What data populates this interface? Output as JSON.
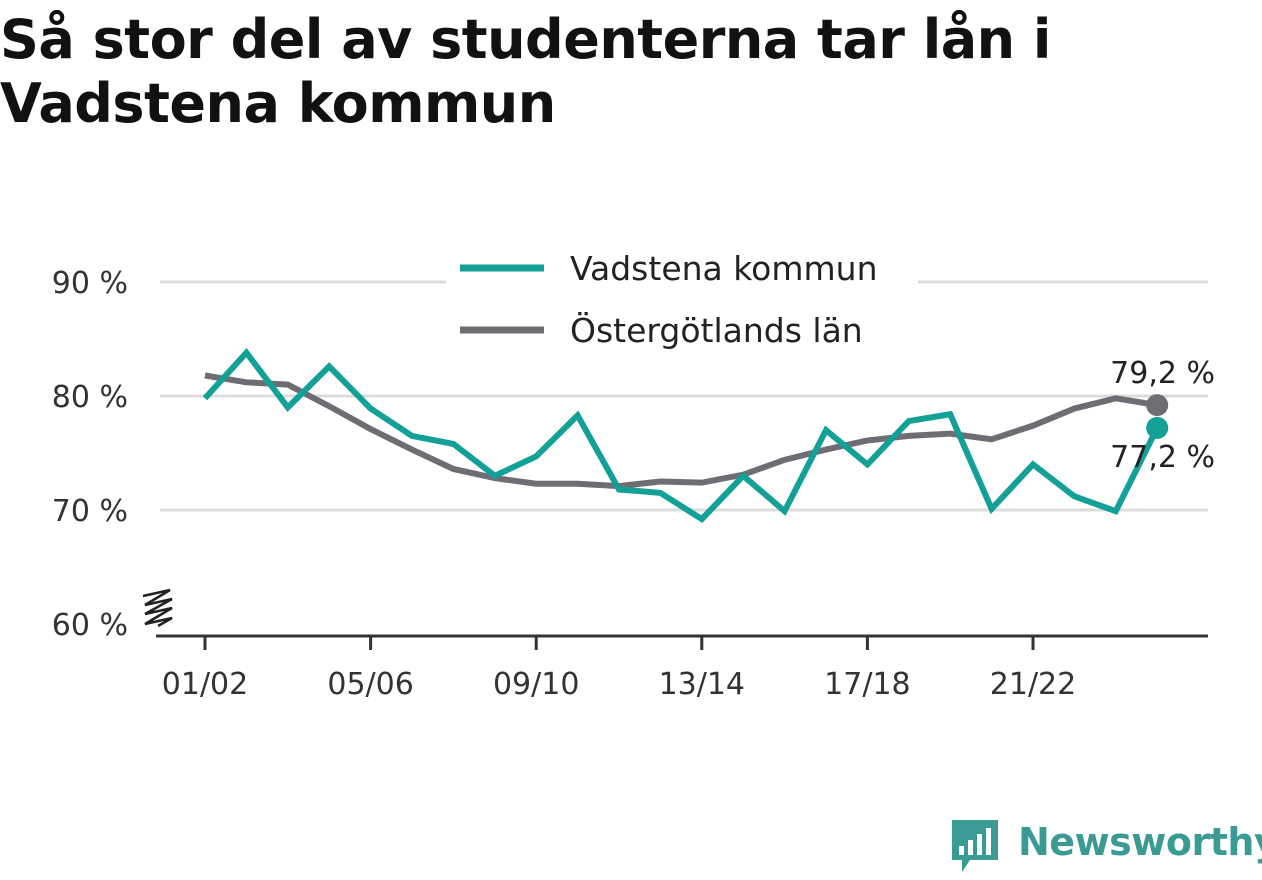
{
  "title": "Så stor del av studenterna tar lån i Vadstena kommun",
  "brand": {
    "name": "Newsworthy",
    "color": "#3a9a94",
    "icon": "bar-chart-speech-bubble-icon"
  },
  "chart_data": {
    "type": "line",
    "title": "Så stor del av studenterna tar lån i Vadstena kommun",
    "xlabel": "",
    "ylabel": "",
    "ylim": [
      60,
      90
    ],
    "yticks": [
      {
        "value": 60,
        "label": "60 %"
      },
      {
        "value": 70,
        "label": "70 %"
      },
      {
        "value": 80,
        "label": "80 %"
      },
      {
        "value": 90,
        "label": "90 %"
      }
    ],
    "y_axis_break": true,
    "grid": true,
    "legend_position": "top",
    "x": [
      "01/02",
      "02/03",
      "03/04",
      "04/05",
      "05/06",
      "06/07",
      "07/08",
      "08/09",
      "09/10",
      "10/11",
      "11/12",
      "12/13",
      "13/14",
      "14/15",
      "15/16",
      "16/17",
      "17/18",
      "18/19",
      "19/20",
      "20/21",
      "21/22",
      "22/23",
      "23/24",
      "24/25"
    ],
    "xticks": [
      "01/02",
      "05/06",
      "09/10",
      "13/14",
      "17/18",
      "21/22"
    ],
    "series": [
      {
        "name": "Vadstena kommun",
        "color": "#12a097",
        "values": [
          79.8,
          83.8,
          79.0,
          82.6,
          78.9,
          76.5,
          75.8,
          73.0,
          74.7,
          78.3,
          71.8,
          71.5,
          69.2,
          73.0,
          69.9,
          77.0,
          74.0,
          77.8,
          78.4,
          70.1,
          74.0,
          71.2,
          69.9,
          77.2
        ],
        "end_label": "77,2 %"
      },
      {
        "name": "Östergötlands län",
        "color": "#6e6d73",
        "values": [
          81.8,
          81.2,
          81.0,
          79.1,
          77.1,
          75.3,
          73.6,
          72.8,
          72.3,
          72.3,
          72.1,
          72.5,
          72.4,
          73.1,
          74.4,
          75.3,
          76.1,
          76.5,
          76.7,
          76.2,
          77.4,
          78.9,
          79.8,
          79.2
        ],
        "end_label": "79,2 %"
      }
    ]
  }
}
